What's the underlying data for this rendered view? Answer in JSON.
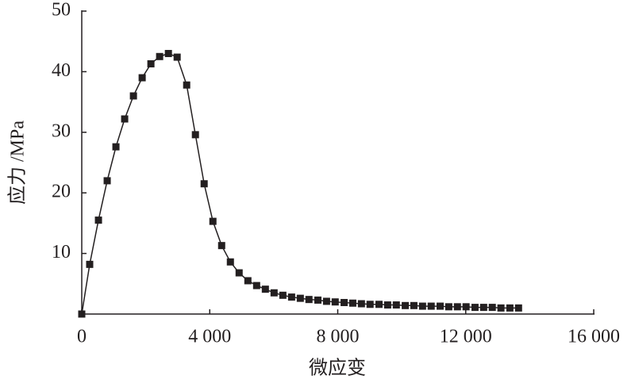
{
  "chart_data": {
    "type": "line",
    "xlabel": "微应变",
    "ylabel": "应力 /MPa",
    "x": [
      0,
      248,
      522,
      795,
      1068,
      1341,
      1615,
      1888,
      2161,
      2434,
      2708,
      2981,
      3279,
      3552,
      3825,
      4099,
      4372,
      4645,
      4918,
      5192,
      5465,
      5738,
      6011,
      6285,
      6558,
      6830,
      7100,
      7380,
      7650,
      7920,
      8200,
      8470,
      8740,
      9010,
      9290,
      9560,
      9830,
      10110,
      10380,
      10650,
      10920,
      11200,
      11470,
      11740,
      12010,
      12290,
      12560,
      12830,
      13100,
      13380,
      13650
    ],
    "values": [
      0,
      8.2,
      15.5,
      22,
      27.6,
      32.2,
      36,
      39,
      41.3,
      42.5,
      43,
      42.4,
      37.8,
      29.6,
      21.5,
      15.3,
      11.3,
      8.6,
      6.8,
      5.5,
      4.7,
      4.1,
      3.5,
      3.1,
      2.8,
      2.6,
      2.4,
      2.3,
      2.1,
      2.0,
      1.9,
      1.8,
      1.7,
      1.6,
      1.6,
      1.5,
      1.5,
      1.4,
      1.4,
      1.3,
      1.3,
      1.3,
      1.2,
      1.2,
      1.2,
      1.1,
      1.1,
      1.1,
      1.0,
      1.0,
      1.0
    ],
    "color": "#231f20",
    "xlim": [
      0,
      16000
    ],
    "ylim": [
      0,
      50
    ],
    "xticks": [
      0,
      {
        "value": 4000,
        "label": "4 000"
      },
      {
        "value": 8000,
        "label": "8 000"
      },
      {
        "value": 12000,
        "label": "12 000"
      },
      {
        "value": 16000,
        "label": "16 000"
      }
    ],
    "yticks": [
      10,
      20,
      30,
      40,
      50
    ]
  }
}
